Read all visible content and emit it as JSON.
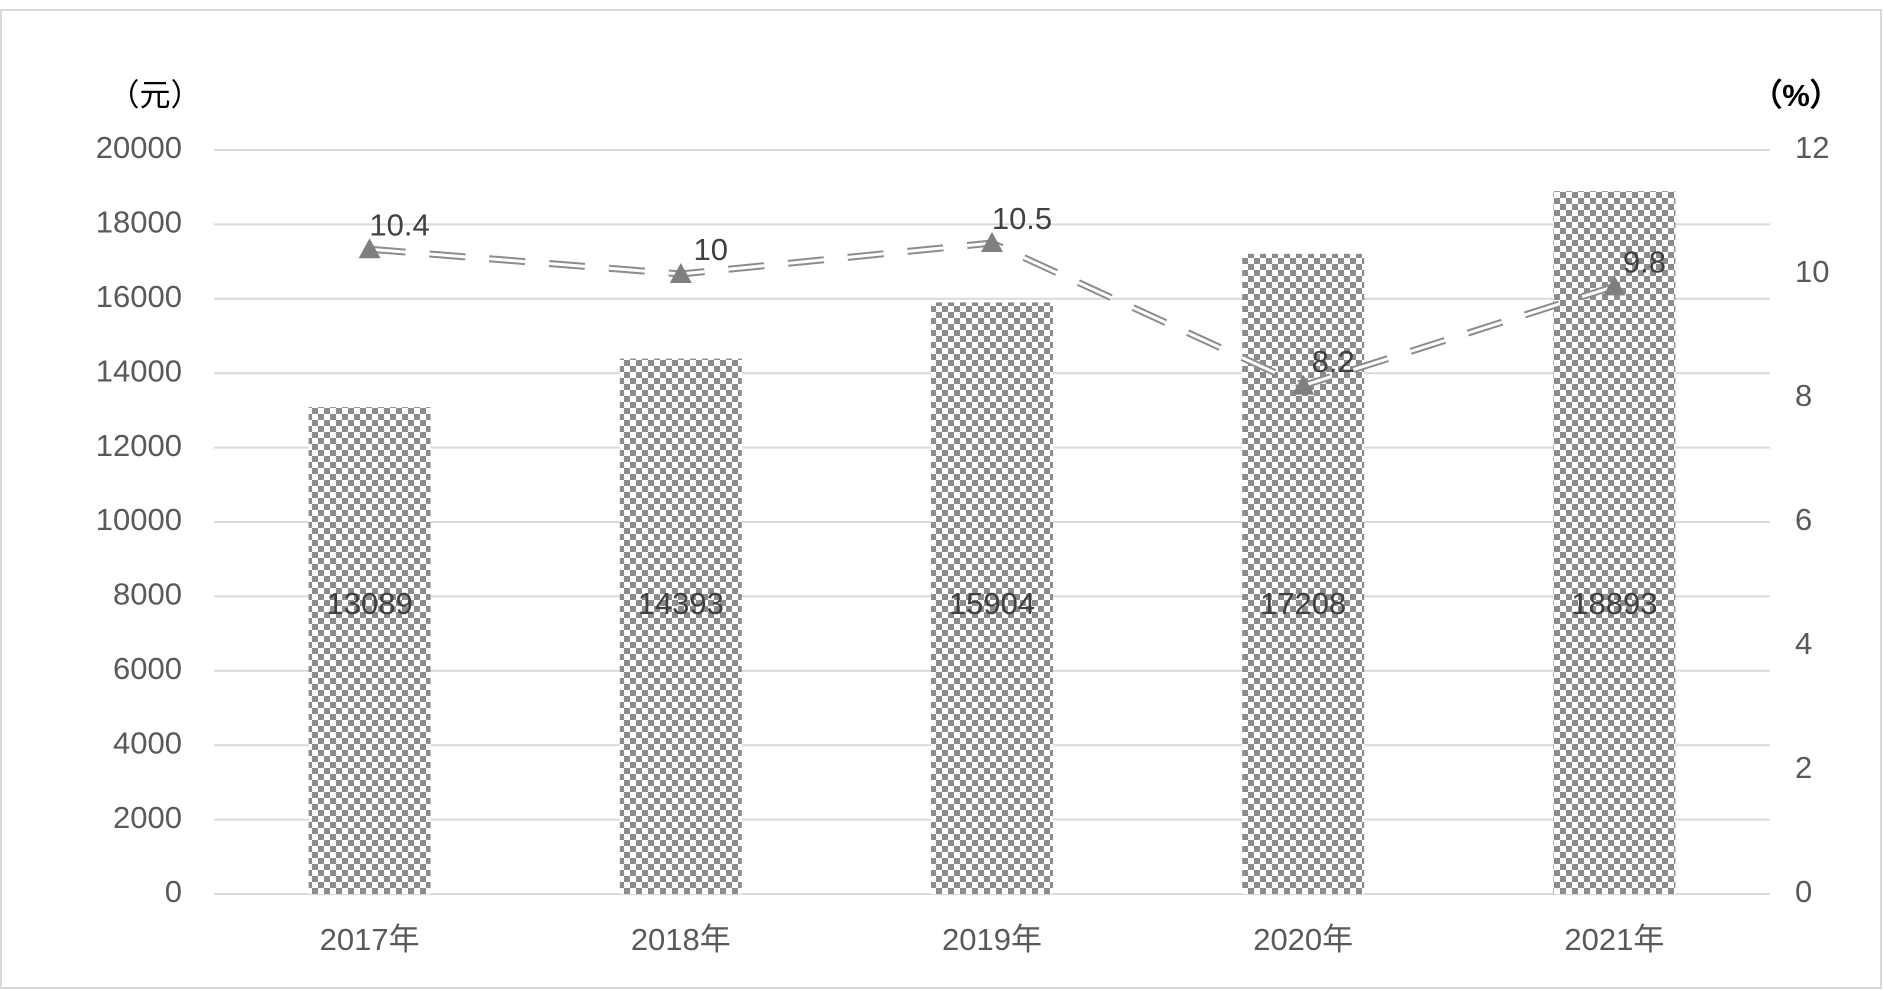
{
  "chart_data": {
    "type": "bar",
    "y_axis_title": "（元）",
    "y2_axis_title": "（%）",
    "categories": [
      "2017年",
      "2018年",
      "2019年",
      "2020年",
      "2021年"
    ],
    "series": [
      {
        "type": "bar",
        "color": "#8c8c8c",
        "values": [
          13089,
          14393,
          15904,
          17208,
          18893
        ]
      },
      {
        "type": "line",
        "axis": "y2",
        "color": "#8c8c8c",
        "values": [
          10.4,
          10,
          10.5,
          8.2,
          9.8
        ]
      }
    ],
    "ylim": [
      0,
      20000
    ],
    "yticks": [
      0,
      2000,
      4000,
      6000,
      8000,
      10000,
      12000,
      14000,
      16000,
      18000,
      20000
    ],
    "y2lim": [
      0,
      12
    ],
    "y2ticks": [
      0,
      2,
      4,
      6,
      8,
      10,
      12
    ],
    "grid": true
  }
}
